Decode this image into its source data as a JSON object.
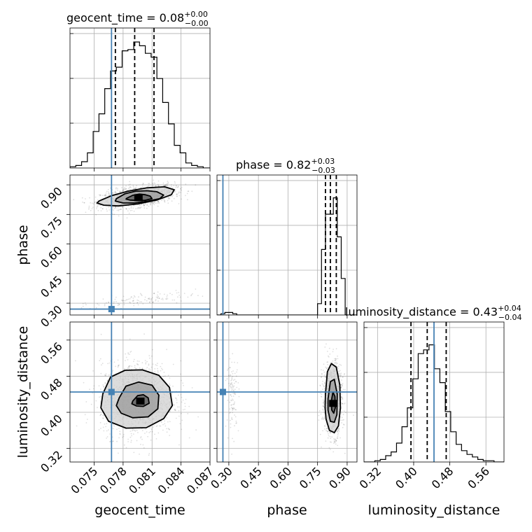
{
  "chart_data": {
    "type": "corner",
    "parameters": [
      "geocent_time",
      "phase",
      "luminosity_distance"
    ],
    "truths": {
      "geocent_time": 0.0768,
      "phase": 0.27,
      "luminosity_distance": 0.445
    },
    "titles": [
      {
        "param": "geocent_time",
        "text": "geocent_time = 0.08",
        "sup": "+0.00",
        "sub": "−0.00"
      },
      {
        "param": "phase",
        "text": "phase = 0.82",
        "sup": "+0.03",
        "sub": "−0.03"
      },
      {
        "param": "luminosity_distance",
        "text": "luminosity_distance = 0.43",
        "sup": "+0.04",
        "sub": "−0.04"
      }
    ],
    "axes": {
      "geocent_time": {
        "range": [
          0.0725,
          0.087
        ],
        "ticks": [
          "0.075",
          "0.078",
          "0.081",
          "0.084",
          "0.087"
        ],
        "tick_values": [
          0.075,
          0.078,
          0.081,
          0.084,
          0.087
        ]
      },
      "phase": {
        "range": [
          0.24,
          0.95
        ],
        "ticks": [
          "0.30",
          "0.45",
          "0.60",
          "0.75",
          "0.90"
        ],
        "tick_values": [
          0.3,
          0.45,
          0.6,
          0.75,
          0.9
        ]
      },
      "luminosity_distance": {
        "range": [
          0.29,
          0.6
        ],
        "ticks": [
          "0.32",
          "0.40",
          "0.48",
          "0.56"
        ],
        "tick_values": [
          0.32,
          0.4,
          0.48,
          0.56
        ]
      }
    },
    "histograms": {
      "geocent_time": {
        "quantiles": [
          0.0772,
          0.0792,
          0.0812
        ],
        "edges": [
          0.0725,
          0.0731,
          0.0737,
          0.0743,
          0.0749,
          0.0755,
          0.0761,
          0.0767,
          0.0773,
          0.0779,
          0.0785,
          0.0791,
          0.0797,
          0.0803,
          0.0809,
          0.0815,
          0.0821,
          0.0827,
          0.0833,
          0.0839,
          0.0845,
          0.0851,
          0.0857,
          0.0863,
          0.087
        ],
        "counts": [
          0.01,
          0.02,
          0.05,
          0.12,
          0.29,
          0.43,
          0.63,
          0.77,
          0.8,
          0.93,
          0.94,
          1.0,
          0.97,
          0.91,
          0.88,
          0.71,
          0.52,
          0.35,
          0.18,
          0.12,
          0.04,
          0.02,
          0.01,
          0.0
        ]
      },
      "phase": {
        "quantiles": [
          0.79,
          0.815,
          0.845
        ],
        "edges": [
          0.24,
          0.26,
          0.28,
          0.3,
          0.32,
          0.34,
          0.36,
          0.73,
          0.75,
          0.77,
          0.79,
          0.81,
          0.83,
          0.85,
          0.87,
          0.89,
          0.95
        ],
        "counts": [
          0.0,
          0.01,
          0.02,
          0.02,
          0.01,
          0.0,
          0.0,
          0.0,
          0.09,
          0.52,
          0.8,
          0.8,
          0.93,
          0.62,
          0.29,
          0.0
        ]
      },
      "luminosity_distance": {
        "quantiles": [
          0.394,
          0.43,
          0.472
        ],
        "edges": [
          0.29,
          0.302,
          0.314,
          0.326,
          0.338,
          0.35,
          0.362,
          0.374,
          0.386,
          0.398,
          0.41,
          0.422,
          0.434,
          0.446,
          0.458,
          0.47,
          0.482,
          0.494,
          0.506,
          0.518,
          0.53,
          0.542,
          0.554,
          0.566,
          0.578,
          0.59,
          0.6
        ],
        "counts": [
          0.0,
          0.0,
          0.01,
          0.02,
          0.05,
          0.08,
          0.15,
          0.28,
          0.43,
          0.66,
          0.86,
          0.89,
          0.93,
          0.74,
          0.63,
          0.4,
          0.24,
          0.14,
          0.09,
          0.06,
          0.04,
          0.02,
          0.01,
          0.01,
          0.0,
          0.0
        ]
      }
    },
    "contours_2d": {
      "phase_vs_geocent_time": [
        {
          "level": "inner",
          "x": [
            0.0784,
            0.079,
            0.0797,
            0.0803,
            0.0808,
            0.081,
            0.0803,
            0.0794,
            0.0787,
            0.0783
          ],
          "y": [
            0.833,
            0.847,
            0.853,
            0.85,
            0.843,
            0.83,
            0.822,
            0.821,
            0.823,
            0.828
          ]
        },
        {
          "level": "middle",
          "x": [
            0.0773,
            0.0782,
            0.0793,
            0.0805,
            0.0815,
            0.0822,
            0.0818,
            0.0805,
            0.0792,
            0.078,
            0.0772
          ],
          "y": [
            0.83,
            0.855,
            0.868,
            0.87,
            0.865,
            0.848,
            0.83,
            0.817,
            0.808,
            0.808,
            0.818
          ]
        },
        {
          "level": "outer",
          "x": [
            0.0755,
            0.0768,
            0.0785,
            0.0805,
            0.0823,
            0.0833,
            0.083,
            0.0815,
            0.0795,
            0.0775,
            0.076,
            0.0753
          ],
          "y": [
            0.818,
            0.845,
            0.868,
            0.885,
            0.89,
            0.875,
            0.85,
            0.823,
            0.803,
            0.793,
            0.797,
            0.808
          ]
        }
      ],
      "luminosity_distance_vs_geocent_time": [
        {
          "level": "inner",
          "x": [
            0.079,
            0.0795,
            0.0801,
            0.0806,
            0.0807,
            0.0801,
            0.0794,
            0.0789
          ],
          "y": [
            0.425,
            0.437,
            0.439,
            0.432,
            0.42,
            0.413,
            0.414,
            0.419
          ]
        },
        {
          "level": "middle",
          "x": [
            0.0776,
            0.0783,
            0.0796,
            0.081,
            0.0817,
            0.0816,
            0.0806,
            0.079,
            0.0778,
            0.0773
          ],
          "y": [
            0.432,
            0.458,
            0.467,
            0.46,
            0.438,
            0.408,
            0.39,
            0.388,
            0.398,
            0.415
          ]
        },
        {
          "level": "outer",
          "x": [
            0.0759,
            0.0767,
            0.0782,
            0.08,
            0.0817,
            0.0828,
            0.0831,
            0.0822,
            0.0804,
            0.0783,
            0.0765,
            0.0757
          ],
          "y": [
            0.441,
            0.478,
            0.493,
            0.494,
            0.482,
            0.455,
            0.415,
            0.386,
            0.366,
            0.365,
            0.38,
            0.41
          ]
        }
      ],
      "luminosity_distance_vs_phase": [
        {
          "level": "inner",
          "x": [
            0.82,
            0.828,
            0.838,
            0.84,
            0.832,
            0.822
          ],
          "y": [
            0.425,
            0.445,
            0.435,
            0.41,
            0.398,
            0.405
          ]
        },
        {
          "level": "middle",
          "x": [
            0.803,
            0.815,
            0.835,
            0.85,
            0.848,
            0.835,
            0.815,
            0.803
          ],
          "y": [
            0.43,
            0.468,
            0.473,
            0.44,
            0.395,
            0.378,
            0.38,
            0.405
          ]
        },
        {
          "level": "outer",
          "x": [
            0.79,
            0.8,
            0.82,
            0.845,
            0.863,
            0.866,
            0.856,
            0.835,
            0.81,
            0.793,
            0.788
          ],
          "y": [
            0.44,
            0.49,
            0.508,
            0.5,
            0.46,
            0.41,
            0.37,
            0.355,
            0.36,
            0.385,
            0.41
          ]
        }
      ]
    }
  }
}
